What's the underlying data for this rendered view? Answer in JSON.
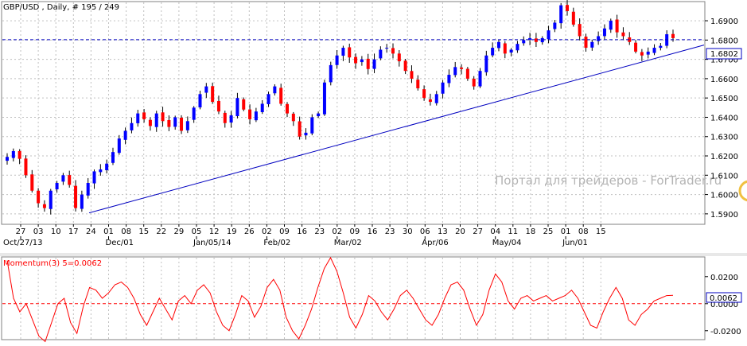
{
  "header": {
    "title": "GBP/USD , Daily, # 195 / 249"
  },
  "watermark": "Портал для трейдеров - ForTrader.ru",
  "colors": {
    "background": "#ffffff",
    "grid": "#c0c0c0",
    "bull_candle": "#0000ff",
    "bear_candle": "#ff0000",
    "trendline": "#0000c0",
    "price_line": "#0000c0",
    "momentum_line": "#ff0000",
    "momentum_level": "#ff0000"
  },
  "chart_data": [
    {
      "type": "candlestick",
      "symbol": "GBP/USD",
      "timeframe": "Daily",
      "ylim": [
        1.585,
        1.6995
      ],
      "y_ticks": [
        "1.6900",
        "1.6800",
        "1.6700",
        "1.6600",
        "1.6500",
        "1.6400",
        "1.6300",
        "1.6200",
        "1.6100",
        "1.6000",
        "1.5900"
      ],
      "current_price_label": "1.6802",
      "current_price": 1.6802,
      "x_ticks": [
        "27",
        "03",
        "10",
        "17",
        "24",
        "01",
        "08",
        "15",
        "22",
        "29",
        "05",
        "12",
        "19",
        "26",
        "02",
        "09",
        "16",
        "23",
        "02",
        "09",
        "16",
        "23",
        "30",
        "06",
        "13",
        "20",
        "27",
        "04",
        "11",
        "18",
        "25",
        "01",
        "08",
        "15"
      ],
      "month_labels": [
        "Oct/27/13",
        "Dec/01",
        "Jan/05/14",
        "Feb/02",
        "Mar/02",
        "Apr/06",
        "May/04",
        "Jun/01"
      ],
      "trendline": {
        "start": 1.5905,
        "end": 1.6774
      },
      "candles_close_path": [
        1.6195,
        1.6225,
        1.6185,
        1.61,
        1.602,
        1.5955,
        1.593,
        1.602,
        1.606,
        1.61,
        1.605,
        1.593,
        1.6,
        1.606,
        1.612,
        1.613,
        1.616,
        1.622,
        1.629,
        1.633,
        1.637,
        1.642,
        1.639,
        1.6355,
        1.642,
        1.638,
        1.635,
        1.64,
        1.633,
        1.638,
        1.645,
        1.652,
        1.656,
        1.648,
        1.643,
        1.637,
        1.641,
        1.65,
        1.644,
        1.639,
        1.643,
        1.647,
        1.652,
        1.656,
        1.647,
        1.642,
        1.638,
        1.63,
        1.632,
        1.64,
        1.642,
        1.658,
        1.667,
        1.672,
        1.676,
        1.671,
        1.668,
        1.67,
        1.665,
        1.67,
        1.675,
        1.676,
        1.673,
        1.669,
        1.664,
        1.66,
        1.655,
        1.65,
        1.648,
        1.652,
        1.658,
        1.662,
        1.666,
        1.665,
        1.66,
        1.656,
        1.664,
        1.672,
        1.676,
        1.679,
        1.673,
        1.675,
        1.678,
        1.68,
        1.681,
        1.679,
        1.681,
        1.685,
        1.689,
        1.698,
        1.695,
        1.688,
        1.682,
        1.676,
        1.679,
        1.682,
        1.686,
        1.69,
        1.684,
        1.682,
        1.679,
        1.674,
        1.672,
        1.674,
        1.676,
        1.677,
        1.683,
        1.681
      ]
    },
    {
      "type": "line",
      "indicator": "Momentum(3)",
      "label": "Momentum(3) 5=0.0062",
      "current_value_label": "0.0062",
      "current_value": 0.0062,
      "level": 0.0,
      "ylim": [
        -0.026,
        0.034
      ],
      "y_ticks": [
        "0.0200",
        "0.0000",
        "-0.0200"
      ],
      "values": [
        0.032,
        0.004,
        -0.006,
        0.0,
        -0.012,
        -0.024,
        -0.028,
        -0.014,
        0.0,
        0.004,
        -0.014,
        -0.022,
        -0.002,
        0.012,
        0.01,
        0.004,
        0.008,
        0.014,
        0.016,
        0.012,
        0.004,
        -0.008,
        -0.016,
        -0.006,
        0.004,
        -0.004,
        -0.012,
        0.002,
        0.006,
        0.0,
        0.01,
        0.014,
        0.008,
        -0.006,
        -0.016,
        -0.02,
        -0.008,
        0.006,
        0.002,
        -0.01,
        -0.002,
        0.012,
        0.018,
        0.01,
        -0.01,
        -0.02,
        -0.026,
        -0.016,
        -0.004,
        0.012,
        0.026,
        0.034,
        0.024,
        0.008,
        -0.01,
        -0.018,
        -0.008,
        0.006,
        0.002,
        -0.006,
        -0.012,
        -0.004,
        0.006,
        0.01,
        0.004,
        -0.004,
        -0.012,
        -0.016,
        -0.008,
        0.004,
        0.014,
        0.016,
        0.01,
        -0.004,
        -0.016,
        -0.008,
        0.01,
        0.022,
        0.016,
        0.002,
        -0.004,
        0.004,
        0.006,
        0.002,
        0.004,
        0.006,
        0.002,
        0.004,
        0.006,
        0.01,
        0.004,
        -0.006,
        -0.016,
        -0.018,
        -0.006,
        0.004,
        0.012,
        0.004,
        -0.012,
        -0.016,
        -0.008,
        -0.004,
        0.002,
        0.004,
        0.006,
        0.0062
      ]
    }
  ]
}
